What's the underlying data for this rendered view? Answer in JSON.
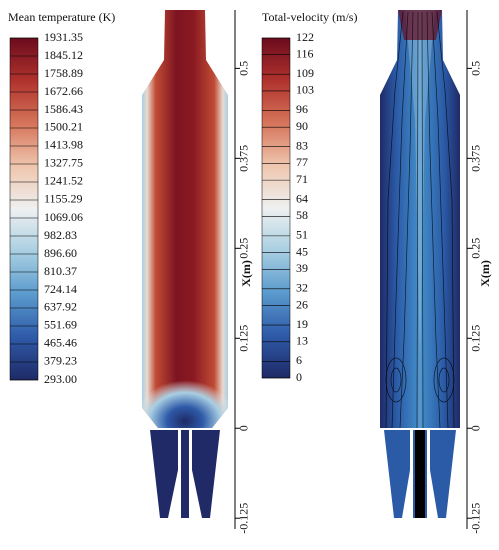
{
  "chart_data": [
    {
      "type": "contour",
      "colorbar_title": "Mean temperature (K)",
      "colorbar_lim": [
        293,
        1931.35
      ],
      "colorbar_ticks": [
        1931.35,
        1845.12,
        1758.89,
        1672.66,
        1586.43,
        1500.21,
        1413.98,
        1327.75,
        1241.52,
        1155.29,
        1069.06,
        982.83,
        {
          "value": 896.6,
          "label": "896.60"
        },
        810.37,
        724.14,
        637.92,
        551.69,
        465.46,
        379.23,
        {
          "value": 293,
          "label": "293.00"
        }
      ],
      "colormap": [
        "#1f2a66",
        "#2e5aa8",
        "#5a9acd",
        "#a9cfe2",
        "#eef0f0",
        "#efc6ae",
        "#d5745a",
        "#b0322d",
        "#6b0c1d"
      ],
      "ylabel": "X(m)",
      "ylim": [
        -0.14,
        0.57
      ],
      "yticks": [
        0.5,
        0.375,
        0.25,
        0.125,
        0,
        -0.125
      ]
    },
    {
      "type": "contour",
      "colorbar_title": "Total-velocity (m/s)",
      "colorbar_lim": [
        0,
        122
      ],
      "colorbar_ticks": [
        122,
        116,
        109,
        103,
        96,
        90,
        83,
        77,
        71,
        64,
        58,
        51,
        45,
        39,
        32,
        26,
        19,
        13,
        6,
        0
      ],
      "colormap": [
        "#1f2a66",
        "#2e5aa8",
        "#5a9acd",
        "#a9cfe2",
        "#eef0f0",
        "#efc6ae",
        "#d5745a",
        "#b0322d",
        "#6b0c1d"
      ],
      "ylabel": "X(m)",
      "ylim": [
        -0.14,
        0.57
      ],
      "yticks": [
        0.5,
        0.375,
        0.25,
        0.125,
        0,
        -0.125
      ]
    }
  ]
}
